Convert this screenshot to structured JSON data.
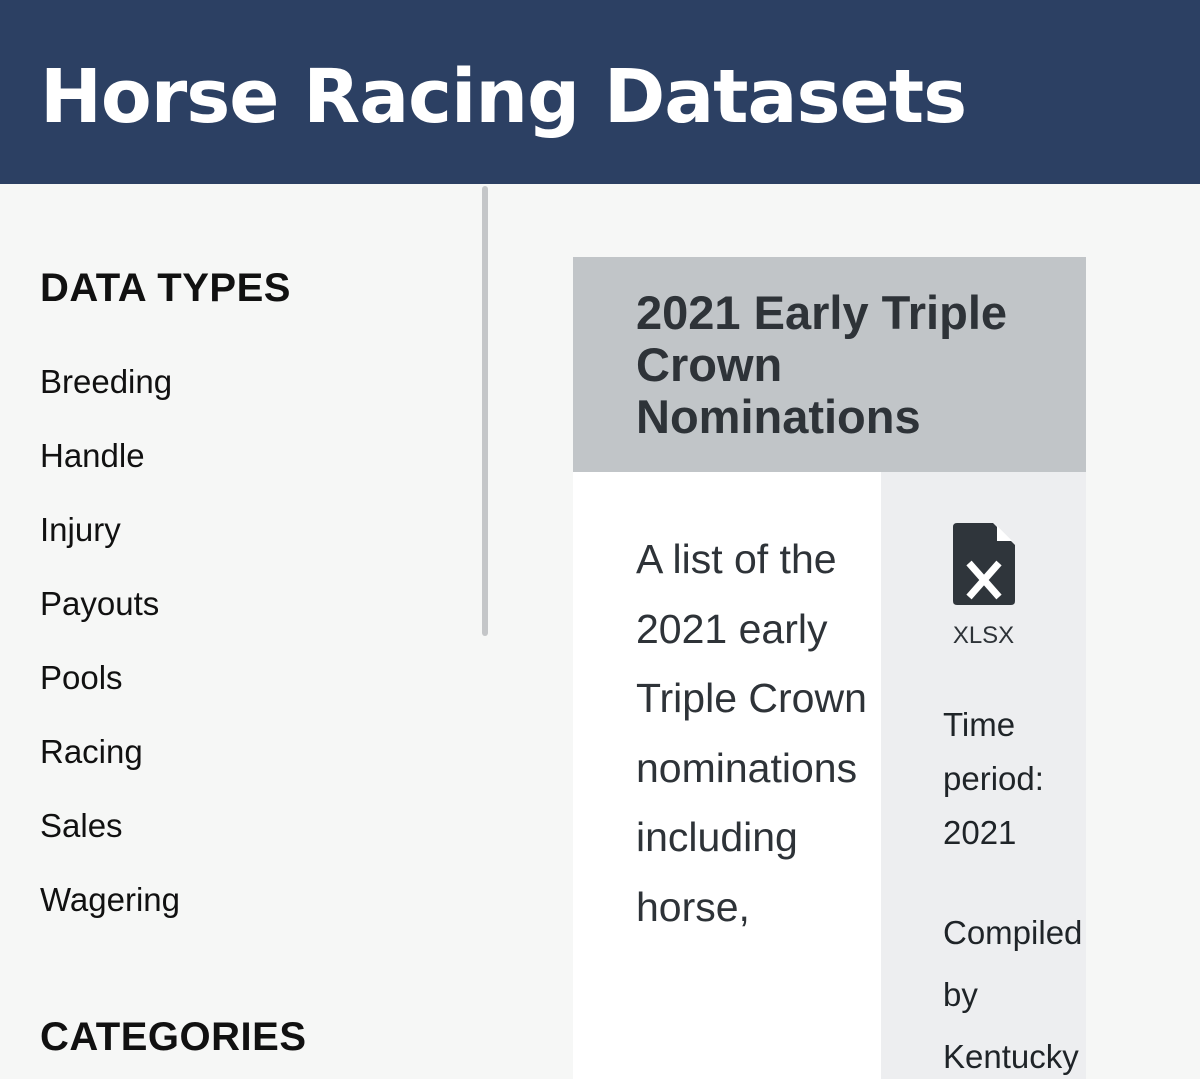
{
  "header": {
    "title": "Horse Racing Datasets"
  },
  "sidebar": {
    "data_types_heading": "DATA TYPES",
    "data_types": [
      {
        "label": "Breeding"
      },
      {
        "label": "Handle"
      },
      {
        "label": "Injury"
      },
      {
        "label": "Payouts"
      },
      {
        "label": "Pools"
      },
      {
        "label": "Racing"
      },
      {
        "label": "Sales"
      },
      {
        "label": "Wagering"
      }
    ],
    "categories_heading": "CATEGORIES"
  },
  "dataset_card": {
    "title": "2021 Early Triple Crown Nominations",
    "description": "A list of the 2021 early Triple Crown nominations including horse,",
    "file_icon": "xlsx-file-icon",
    "file_type": "XLSX",
    "time_period_line1": "Time",
    "time_period_line2": "period:",
    "time_period_value": "2021",
    "compiled_line1": "Compiled",
    "compiled_line2": "by",
    "compiled_line3": "Kentucky"
  },
  "colors": {
    "header_bg": "#2c4063",
    "card_header_bg": "#c1c5c8",
    "card_side_bg": "#edeef0",
    "page_bg": "#f6f7f6"
  }
}
